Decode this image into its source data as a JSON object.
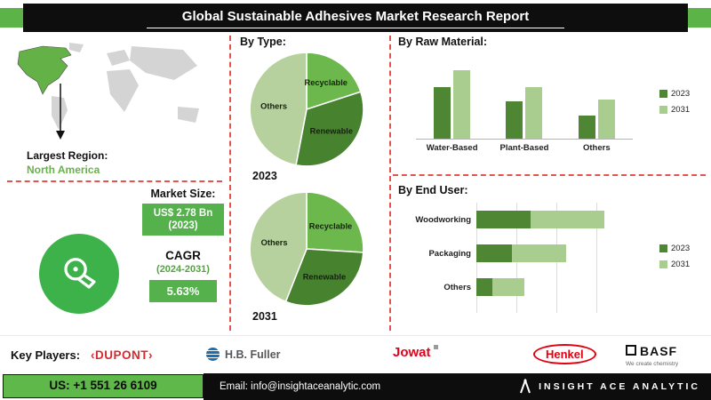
{
  "header": {
    "title": "Global Sustainable Adhesives Market Research Report"
  },
  "left_panel": {
    "largest_region_label": "Largest Region:",
    "largest_region_value": "North America",
    "market_size_label": "Market Size:",
    "market_size_line1": "US$ 2.78 Bn",
    "market_size_line2": "(2023)",
    "cagr_label": "CAGR",
    "cagr_period": "(2024-2031)",
    "cagr_value": "5.63%"
  },
  "sections": {
    "by_type": "By Type:",
    "by_raw_material": "By Raw Material:",
    "by_end_user": "By End User:",
    "pie1_year": "2023",
    "pie2_year": "2031"
  },
  "chart_data": [
    {
      "type": "pie",
      "title": "By Type: 2023",
      "labels": [
        "Recyclable",
        "Renewable",
        "Others"
      ],
      "values": [
        20,
        33,
        47
      ],
      "colors": [
        "#6cb84c",
        "#47822f",
        "#b6d19e"
      ]
    },
    {
      "type": "pie",
      "title": "By Type: 2031",
      "labels": [
        "Recyclable",
        "Renewable",
        "Others"
      ],
      "values": [
        26,
        30,
        44
      ],
      "colors": [
        "#6cb84c",
        "#47822f",
        "#b6d19e"
      ]
    },
    {
      "type": "bar",
      "title": "By Raw Material:",
      "categories": [
        "Water-Based",
        "Plant-Based",
        "Others"
      ],
      "series": [
        {
          "name": "2023",
          "values": [
            62,
            45,
            28
          ]
        },
        {
          "name": "2031",
          "values": [
            82,
            62,
            47
          ]
        }
      ],
      "colors": [
        "#4f8633",
        "#a9cd8e"
      ],
      "ylim": [
        0,
        100
      ],
      "legend_position": "right",
      "grid": false
    },
    {
      "type": "bar-horizontal",
      "title": "By End User:",
      "categories": [
        "Woodworking",
        "Packaging",
        "Others"
      ],
      "series": [
        {
          "name": "2023",
          "values": [
            34,
            22,
            10
          ]
        },
        {
          "name": "2031",
          "values": [
            46,
            34,
            20
          ]
        }
      ],
      "colors": [
        "#4f8633",
        "#a9cd8e"
      ],
      "xlim": [
        0,
        100
      ],
      "legend_position": "right",
      "grid": true
    }
  ],
  "key_players": {
    "label": "Key Players:",
    "items": [
      {
        "name": "‹DUPONT›"
      },
      {
        "name": "H.B. Fuller"
      },
      {
        "name": "Jowat"
      },
      {
        "name": "Henkel"
      },
      {
        "name": "BASF",
        "tagline": "We create chemistry"
      }
    ]
  },
  "footer": {
    "phone": "US: +1 551 26 6109",
    "email": "Email: info@insightaceanalytic.com",
    "brand": "INSIGHT ACE ANALYTIC"
  }
}
